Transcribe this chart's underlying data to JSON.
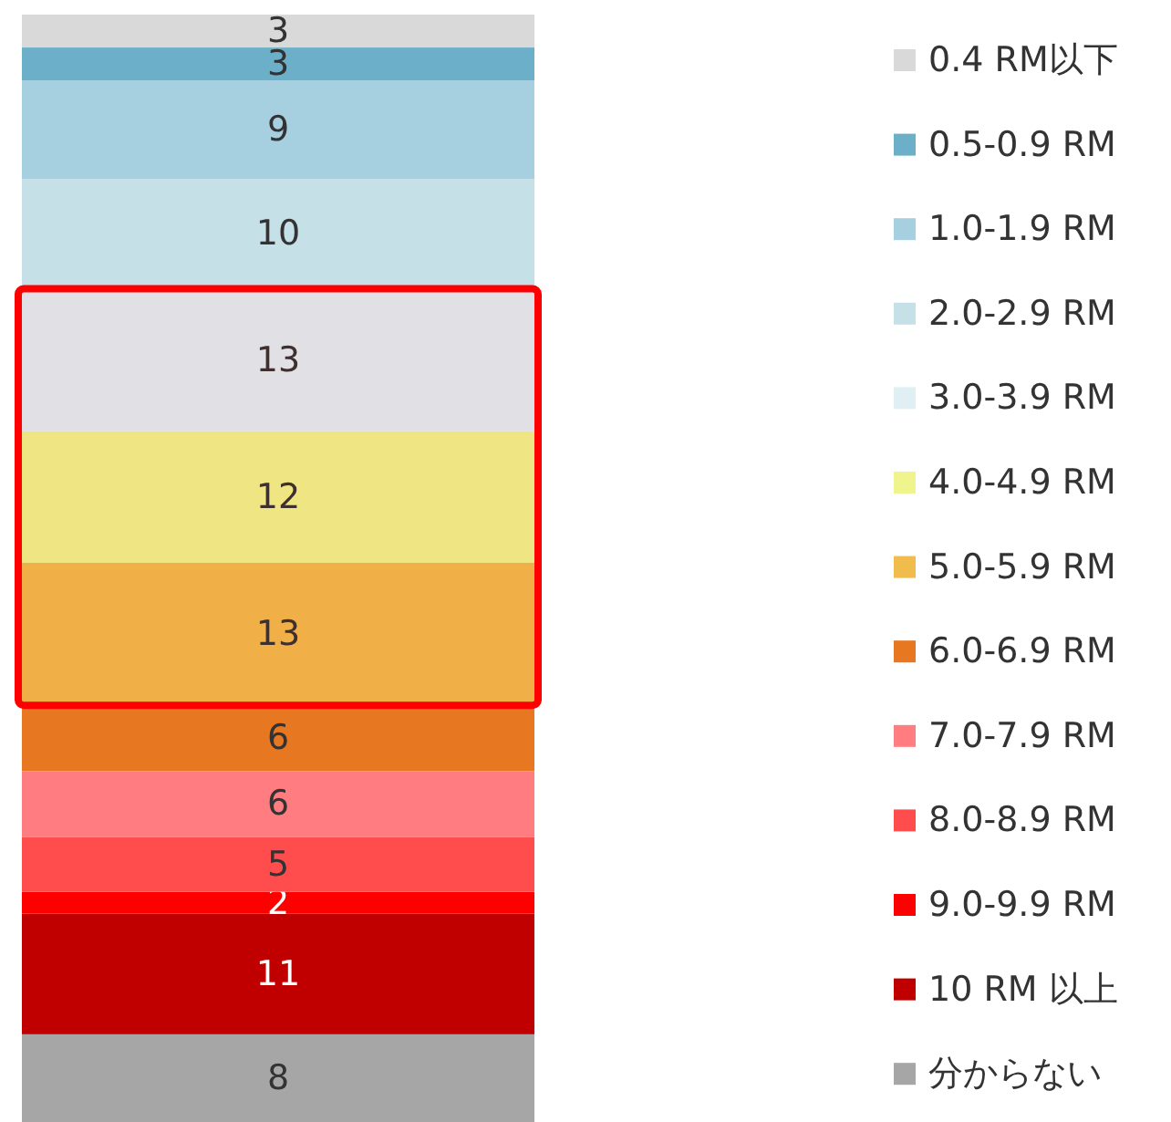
{
  "chart_data": {
    "type": "bar",
    "stacked": true,
    "data_labels": true,
    "legend": "right",
    "categories": [
      null
    ],
    "series": [
      {
        "name": "分からない",
        "color": "#a6a6a6",
        "values": [
          8
        ]
      },
      {
        "name": "10 RM 以上",
        "color": "#c00000",
        "values": [
          11
        ]
      },
      {
        "name": "9.0-9.9 RM",
        "color": "#ff0000",
        "values": [
          2
        ]
      },
      {
        "name": "8.0-8.9 RM",
        "color": "#ff4d4d",
        "values": [
          5
        ]
      },
      {
        "name": "7.0-7.9 RM",
        "color": "#ff7c80",
        "values": [
          6
        ]
      },
      {
        "name": "6.0-6.9 RM",
        "color": "#e87722",
        "values": [
          6
        ]
      },
      {
        "name": "5.0-5.9 RM",
        "color": "#f0bc4c",
        "values": [
          13
        ]
      },
      {
        "name": "4.0-4.9 RM",
        "color": "#eff48c",
        "values": [
          12
        ]
      },
      {
        "name": "3.0-3.9 RM",
        "color": "#e0eff4",
        "values": [
          13
        ]
      },
      {
        "name": "2.0-2.9 RM",
        "color": "#c6e0e8",
        "values": [
          10
        ]
      },
      {
        "name": "1.0-1.9 RM",
        "color": "#a6d0e0",
        "values": [
          9
        ]
      },
      {
        "name": "0.5-0.9 RM",
        "color": "#6bb0c8",
        "values": [
          3
        ]
      },
      {
        "name": "0.4 RM以下",
        "color": "#d9d9d9",
        "values": [
          3
        ]
      }
    ],
    "bands": [
      {
        "axis": "y",
        "from": 38,
        "to": 76,
        "color": "#ff0000"
      }
    ]
  }
}
